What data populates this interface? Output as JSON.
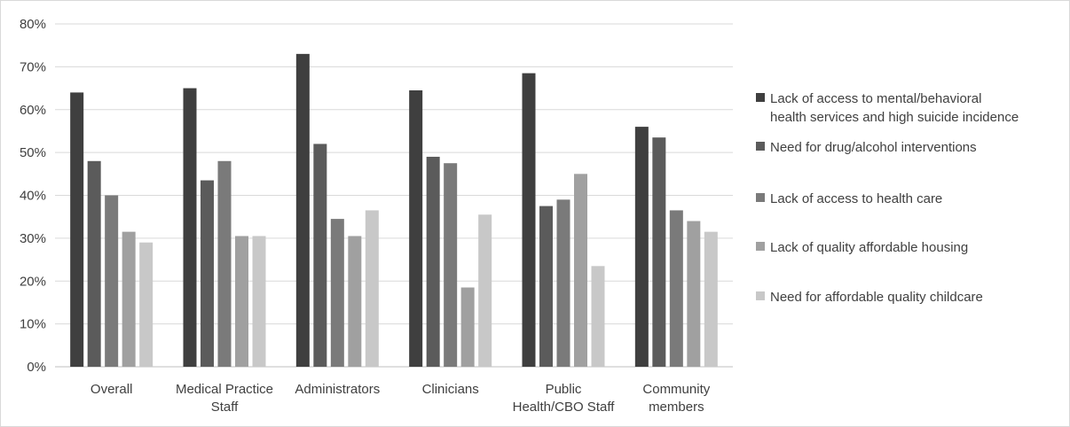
{
  "chart_data": {
    "type": "bar",
    "title": "",
    "xlabel": "",
    "ylabel": "",
    "ylim": [
      0,
      80
    ],
    "yticks": [
      "0%",
      "10%",
      "20%",
      "30%",
      "40%",
      "50%",
      "60%",
      "70%",
      "80%"
    ],
    "y_unit": "%",
    "grid": true,
    "legend_position": "right",
    "categories": [
      [
        "Overall"
      ],
      [
        "Medical Practice",
        "Staff"
      ],
      [
        "Administrators"
      ],
      [
        "Clinicians"
      ],
      [
        "Public",
        "Health/CBO Staff"
      ],
      [
        "Community",
        "members"
      ]
    ],
    "series": [
      {
        "name": [
          "Lack of access to mental/behavioral",
          "health services and high suicide incidence"
        ],
        "color": "#3f3f3f",
        "values": [
          64,
          65,
          73,
          64.5,
          68.5,
          56
        ]
      },
      {
        "name": [
          "Need for drug/alcohol interventions"
        ],
        "color": "#5b5b5b",
        "values": [
          48,
          43.5,
          52,
          49,
          37.5,
          53.5
        ]
      },
      {
        "name": [
          "Lack of access to health care"
        ],
        "color": "#7a7a7a",
        "values": [
          40,
          48,
          34.5,
          47.5,
          39,
          36.5
        ]
      },
      {
        "name": [
          "Lack of quality affordable housing"
        ],
        "color": "#a0a0a0",
        "values": [
          31.5,
          30.5,
          30.5,
          18.5,
          45,
          34
        ]
      },
      {
        "name": [
          "Need for affordable quality childcare"
        ],
        "color": "#c8c8c8",
        "values": [
          29,
          30.5,
          36.5,
          35.5,
          23.5,
          31.5
        ]
      }
    ]
  }
}
